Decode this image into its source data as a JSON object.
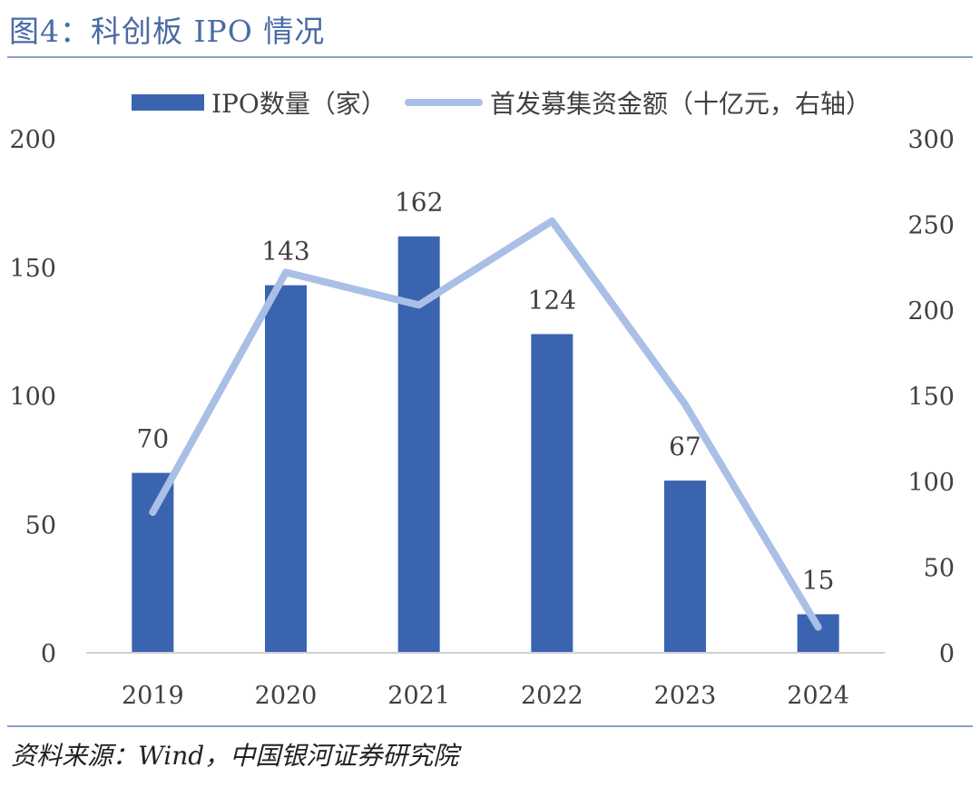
{
  "header": {
    "title": "图4：科创板 IPO 情况"
  },
  "footer": {
    "source": "资料来源：Wind，中国银河证券研究院"
  },
  "chart_data": {
    "type": "bar",
    "categories": [
      "2019",
      "2020",
      "2021",
      "2022",
      "2023",
      "2024"
    ],
    "series": [
      {
        "name": "IPO数量（家）",
        "type": "bar",
        "axis": "left",
        "color": "#3a64b0",
        "values": [
          70,
          143,
          162,
          124,
          67,
          15
        ],
        "data_labels": [
          "70",
          "143",
          "162",
          "124",
          "67",
          "15"
        ]
      },
      {
        "name": "首发募集资金额（十亿元，右轴）",
        "type": "line",
        "axis": "right",
        "color": "#a9bfe6",
        "values": [
          82,
          222,
          203,
          252,
          145,
          15
        ]
      }
    ],
    "y_left": {
      "min": 0,
      "max": 200,
      "ticks": [
        "0",
        "50",
        "100",
        "150",
        "200"
      ]
    },
    "y_right": {
      "min": 0,
      "max": 300,
      "ticks": [
        "0",
        "50",
        "100",
        "150",
        "200",
        "250",
        "300"
      ]
    },
    "legend_position": "top",
    "grid": false
  }
}
